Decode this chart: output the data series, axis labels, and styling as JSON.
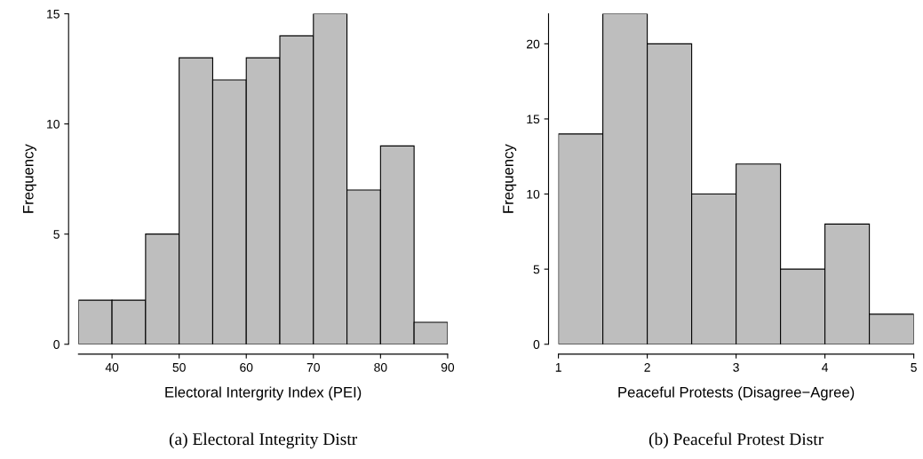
{
  "chart_data": [
    {
      "type": "histogram",
      "xlabel": "Electoral Intergrity Index (PEI)",
      "ylabel": "Frequency",
      "annotations": [
        "(a) Electoral Integrity Distr"
      ],
      "color": "#bebebe",
      "bins": [
        35,
        40,
        45,
        50,
        55,
        60,
        65,
        70,
        75,
        80,
        85,
        90
      ],
      "values": [
        2,
        2,
        5,
        13,
        12,
        13,
        14,
        15,
        7,
        9,
        1
      ],
      "xlim": [
        35,
        90
      ],
      "xticks": [
        40,
        50,
        60,
        70,
        80,
        90
      ],
      "ylim": [
        0,
        15
      ],
      "yticks": [
        0,
        5,
        10,
        15
      ]
    },
    {
      "type": "histogram",
      "xlabel": "Peaceful Protests (Disagree−Agree)",
      "ylabel": "Frequency",
      "annotations": [
        "(b) Peaceful Protest Distr"
      ],
      "color": "#bebebe",
      "bins": [
        1,
        1.5,
        2,
        2.5,
        3,
        3.5,
        4,
        4.5,
        5
      ],
      "values": [
        14,
        22,
        20,
        10,
        12,
        5,
        8,
        2
      ],
      "xlim": [
        1,
        5
      ],
      "xticks": [
        1,
        2,
        3,
        4,
        5
      ],
      "ylim": [
        0,
        22
      ],
      "yticks": [
        0,
        5,
        10,
        15,
        20
      ]
    }
  ]
}
